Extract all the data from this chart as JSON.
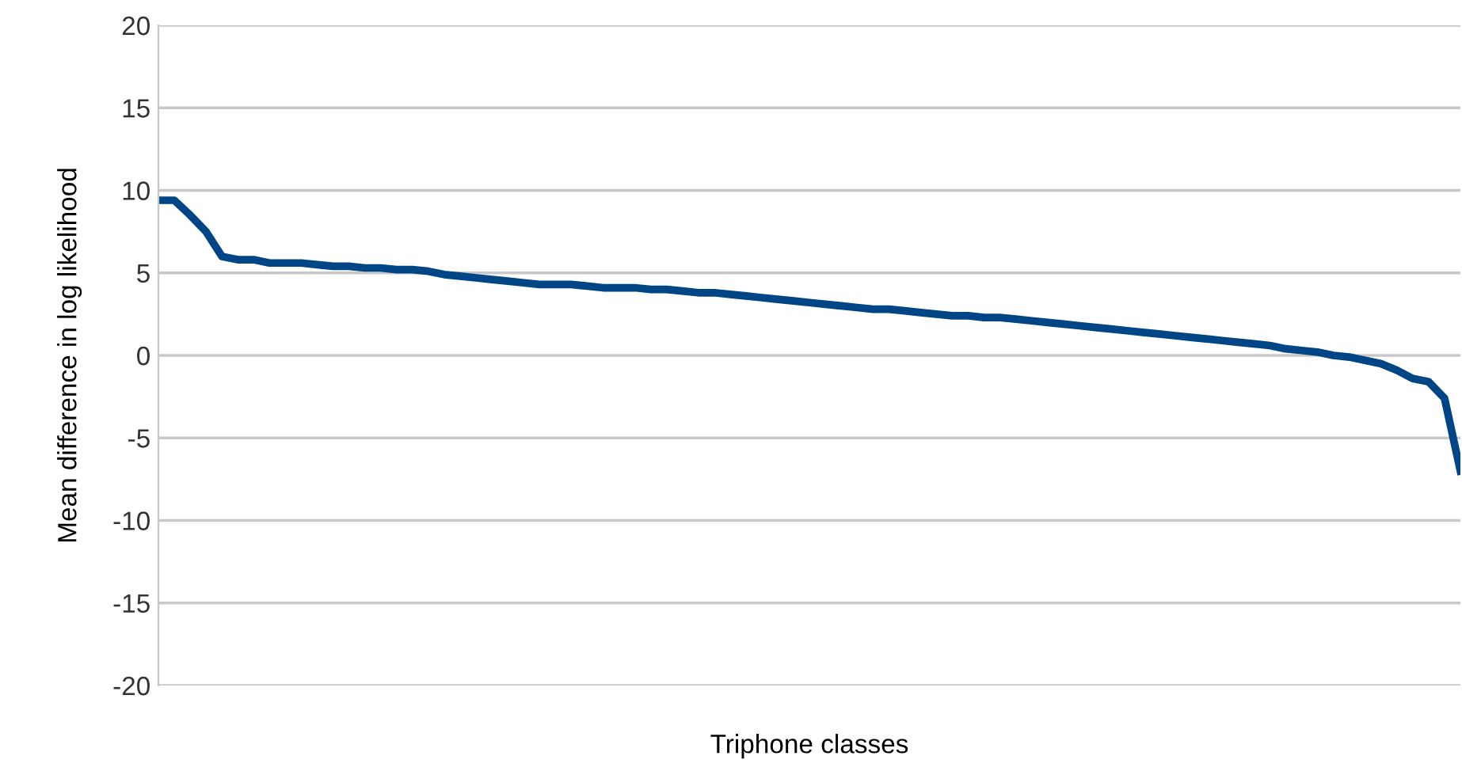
{
  "chart_data": {
    "type": "line",
    "xlabel": "Triphone classes",
    "ylabel": "Mean difference in log likelihood",
    "categories": [
      null,
      null,
      null,
      null,
      null,
      null,
      null,
      null,
      null,
      null,
      null,
      null,
      null,
      null,
      null,
      null,
      null,
      null,
      null,
      null,
      null,
      null,
      null,
      null,
      null,
      null,
      null,
      null,
      null,
      null,
      null,
      null,
      null,
      null,
      null,
      null,
      null,
      null,
      null,
      null,
      null,
      null,
      null,
      null,
      null,
      null,
      null,
      null,
      null,
      null,
      null,
      null,
      null,
      null,
      null,
      null,
      null,
      null,
      null,
      null,
      null,
      null,
      null,
      null,
      null,
      null,
      null,
      null,
      null,
      null,
      null,
      null,
      null,
      null,
      null,
      null,
      null,
      null,
      null,
      null,
      null,
      null,
      null
    ],
    "series": [
      {
        "color": "#004586",
        "values": [
          9.4,
          9.4,
          8.5,
          7.5,
          6.0,
          5.8,
          5.8,
          5.6,
          5.6,
          5.6,
          5.5,
          5.4,
          5.4,
          5.3,
          5.3,
          5.2,
          5.2,
          5.1,
          4.9,
          4.8,
          4.7,
          4.6,
          4.5,
          4.4,
          4.3,
          4.3,
          4.3,
          4.2,
          4.1,
          4.1,
          4.1,
          4.0,
          4.0,
          3.9,
          3.8,
          3.8,
          3.7,
          3.6,
          3.5,
          3.4,
          3.3,
          3.2,
          3.1,
          3.0,
          2.9,
          2.8,
          2.8,
          2.7,
          2.6,
          2.5,
          2.4,
          2.4,
          2.3,
          2.3,
          2.2,
          2.1,
          2.0,
          1.9,
          1.8,
          1.7,
          1.6,
          1.5,
          1.4,
          1.3,
          1.2,
          1.1,
          1.0,
          0.9,
          0.8,
          0.7,
          0.6,
          0.4,
          0.3,
          0.2,
          0.0,
          -0.1,
          -0.3,
          -0.5,
          -0.9,
          -1.4,
          -1.6,
          -2.6,
          -7.0
        ]
      }
    ],
    "ylim": [
      -20,
      20
    ],
    "yticks": [
      -20,
      -15,
      -10,
      -5,
      0,
      5,
      10,
      15,
      20
    ],
    "grid": "y",
    "tick_labels": "y",
    "marker": "none",
    "line_style": "solid"
  }
}
